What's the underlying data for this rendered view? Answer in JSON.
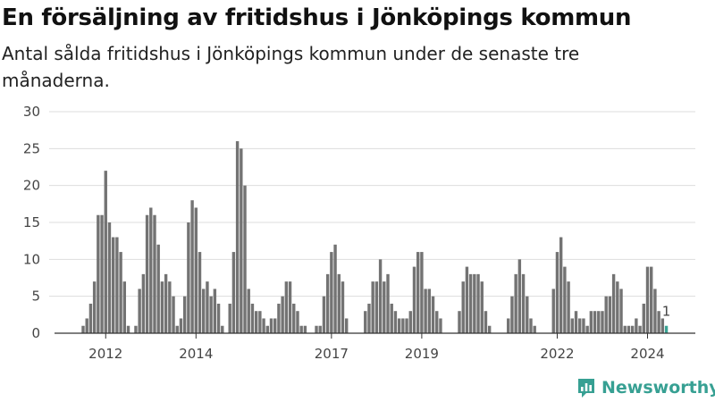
{
  "title": "En försäljning av fritidshus i Jönköpings kommun",
  "subtitle": "Antal sålda fritidshus i Jönköpings kommun under de senaste tre månaderna.",
  "brand": {
    "name": "Newsworthy",
    "icon": "newsworthy-logo-icon"
  },
  "colors": {
    "bar": "#737373",
    "highlight": "#3aa394",
    "brand": "#37a093"
  },
  "chart_data": {
    "type": "bar",
    "title": "En försäljning av fritidshus i Jönköpings kommun",
    "subtitle": "Antal sålda fritidshus i Jönköpings kommun under de senaste tre månaderna.",
    "xlabel": "",
    "ylabel": "",
    "ylim": [
      0,
      30
    ],
    "yticks": [
      0,
      5,
      10,
      15,
      20,
      25,
      30
    ],
    "xticks": [
      "2012",
      "2014",
      "2017",
      "2019",
      "2022",
      "2024"
    ],
    "grid": true,
    "start": "2011-07",
    "interval": "monthly",
    "values": [
      1,
      2,
      4,
      7,
      16,
      16,
      22,
      15,
      13,
      13,
      11,
      7,
      1,
      0,
      1,
      6,
      8,
      16,
      17,
      16,
      12,
      7,
      8,
      7,
      5,
      1,
      2,
      5,
      15,
      18,
      17,
      11,
      6,
      7,
      5,
      6,
      4,
      1,
      0,
      4,
      11,
      26,
      25,
      20,
      6,
      4,
      3,
      3,
      2,
      1,
      2,
      2,
      4,
      5,
      7,
      7,
      4,
      3,
      1,
      1,
      0,
      0,
      1,
      1,
      5,
      8,
      11,
      12,
      8,
      7,
      2,
      0,
      0,
      0,
      0,
      3,
      4,
      7,
      7,
      10,
      7,
      8,
      4,
      3,
      2,
      2,
      2,
      3,
      9,
      11,
      11,
      6,
      6,
      5,
      3,
      2,
      0,
      0,
      0,
      0,
      3,
      7,
      9,
      8,
      8,
      8,
      7,
      3,
      1,
      0,
      0,
      0,
      0,
      2,
      5,
      8,
      10,
      8,
      5,
      2,
      1,
      0,
      0,
      0,
      0,
      6,
      11,
      13,
      9,
      7,
      2,
      3,
      2,
      2,
      1,
      3,
      3,
      3,
      3,
      5,
      5,
      8,
      7,
      6,
      1,
      1,
      1,
      2,
      1,
      4,
      9,
      9,
      6,
      3,
      2,
      1
    ],
    "last_value_label": "1"
  }
}
